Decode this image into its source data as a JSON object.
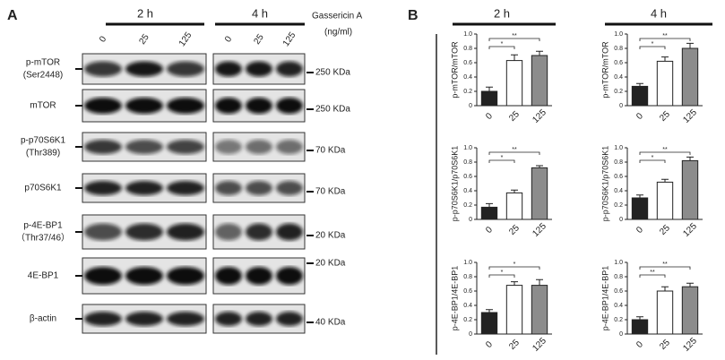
{
  "panel_a": {
    "label": "A",
    "time_labels": [
      "2 h",
      "4 h"
    ],
    "treatment": "Gassericin A",
    "unit": "(ng/ml)",
    "doses": [
      "0",
      "25",
      "125",
      "0",
      "25",
      "125"
    ],
    "rows": [
      {
        "label": [
          "p-mTOR",
          "(Ser2448)"
        ],
        "size": "250 KDa"
      },
      {
        "label": [
          "mTOR"
        ],
        "size": "250 KDa"
      },
      {
        "label": [
          "p-p70S6K1",
          "(Thr389)"
        ],
        "size": "70 KDa"
      },
      {
        "label": [
          "p70S6K1"
        ],
        "size": "70 KDa"
      },
      {
        "label": [
          "p-4E-BP1",
          "（Thr37/46）"
        ],
        "size": "20 KDa"
      },
      {
        "label": [
          "4E-BP1"
        ],
        "size": "20 KDa"
      },
      {
        "label": [
          "β-actin"
        ],
        "size": "40 KDa"
      }
    ]
  },
  "panel_b": {
    "label": "B",
    "time_labels": [
      "2 h",
      "4 h"
    ]
  },
  "chart_data": [
    {
      "type": "bar",
      "y_label": "p-mTOR/mTOR",
      "categories": [
        "0",
        "25",
        "125"
      ],
      "values": [
        0.2,
        0.63,
        0.7
      ],
      "errors": [
        0.06,
        0.08,
        0.06
      ],
      "colors": [
        "#222222",
        "#ffffff",
        "#8c8c8c"
      ],
      "ylim": [
        0,
        1
      ],
      "yticks": [
        0,
        0.2,
        0.4,
        0.6,
        0.8,
        {
          "value": 1,
          "label": "1.0"
        }
      ],
      "brackets": [
        {
          "label": "*",
          "between": [
            "0",
            "25"
          ]
        },
        {
          "label": "**",
          "between": [
            "0",
            "125"
          ]
        }
      ]
    },
    {
      "type": "bar",
      "y_label": "p-mTOR/mTOR",
      "categories": [
        "0",
        "25",
        "125"
      ],
      "values": [
        0.27,
        0.62,
        0.8
      ],
      "errors": [
        0.04,
        0.06,
        0.07
      ],
      "colors": [
        "#222222",
        "#ffffff",
        "#8c8c8c"
      ],
      "ylim": [
        0,
        1
      ],
      "yticks": [
        0,
        0.2,
        0.4,
        0.6,
        0.8,
        {
          "value": 1,
          "label": "1.0"
        }
      ],
      "brackets": [
        {
          "label": "*",
          "between": [
            "0",
            "25"
          ]
        },
        {
          "label": "**",
          "between": [
            "0",
            "125"
          ]
        }
      ]
    },
    {
      "type": "bar",
      "y_label": "p-p70S6K1/p70S6K1",
      "categories": [
        "0",
        "25",
        "125"
      ],
      "values": [
        0.17,
        0.37,
        0.72
      ],
      "errors": [
        0.05,
        0.04,
        0.03
      ],
      "colors": [
        "#222222",
        "#ffffff",
        "#8c8c8c"
      ],
      "ylim": [
        0,
        1
      ],
      "yticks": [
        0,
        0.2,
        0.4,
        0.6,
        0.8,
        {
          "value": 1,
          "label": "1.0"
        }
      ],
      "brackets": [
        {
          "label": "*",
          "between": [
            "0",
            "25"
          ]
        },
        {
          "label": "**",
          "between": [
            "0",
            "125"
          ]
        }
      ]
    },
    {
      "type": "bar",
      "y_label": "p-p70S6K1/p70S6K1",
      "categories": [
        "0",
        "25",
        "125"
      ],
      "values": [
        0.3,
        0.52,
        0.82
      ],
      "errors": [
        0.04,
        0.04,
        0.05
      ],
      "colors": [
        "#222222",
        "#ffffff",
        "#8c8c8c"
      ],
      "ylim": [
        0,
        1
      ],
      "yticks": [
        0,
        0.2,
        0.4,
        0.6,
        0.8,
        {
          "value": 1,
          "label": "1.0"
        }
      ],
      "brackets": [
        {
          "label": "*",
          "between": [
            "0",
            "25"
          ]
        },
        {
          "label": "**",
          "between": [
            "0",
            "125"
          ]
        }
      ]
    },
    {
      "type": "bar",
      "y_label": "p-4E-BP1/4E-BP1",
      "categories": [
        "0",
        "25",
        "125"
      ],
      "values": [
        0.3,
        0.68,
        0.68
      ],
      "errors": [
        0.04,
        0.05,
        0.08
      ],
      "colors": [
        "#222222",
        "#ffffff",
        "#8c8c8c"
      ],
      "ylim": [
        0,
        1
      ],
      "yticks": [
        0,
        0.2,
        0.4,
        0.6,
        0.8,
        {
          "value": 1,
          "label": "1.0"
        }
      ],
      "brackets": [
        {
          "label": "*",
          "between": [
            "0",
            "25"
          ]
        },
        {
          "label": "*",
          "between": [
            "0",
            "125"
          ]
        }
      ]
    },
    {
      "type": "bar",
      "y_label": "p-4E-BP1/4E-BP1",
      "categories": [
        "0",
        "25",
        "125"
      ],
      "values": [
        0.2,
        0.6,
        0.66
      ],
      "errors": [
        0.04,
        0.06,
        0.05
      ],
      "colors": [
        "#222222",
        "#ffffff",
        "#8c8c8c"
      ],
      "ylim": [
        0,
        1
      ],
      "yticks": [
        0,
        0.2,
        0.4,
        0.6,
        0.8,
        {
          "value": 1,
          "label": "1.0"
        }
      ],
      "brackets": [
        {
          "label": "**",
          "between": [
            "0",
            "25"
          ]
        },
        {
          "label": "**",
          "between": [
            "0",
            "125"
          ]
        }
      ]
    }
  ]
}
